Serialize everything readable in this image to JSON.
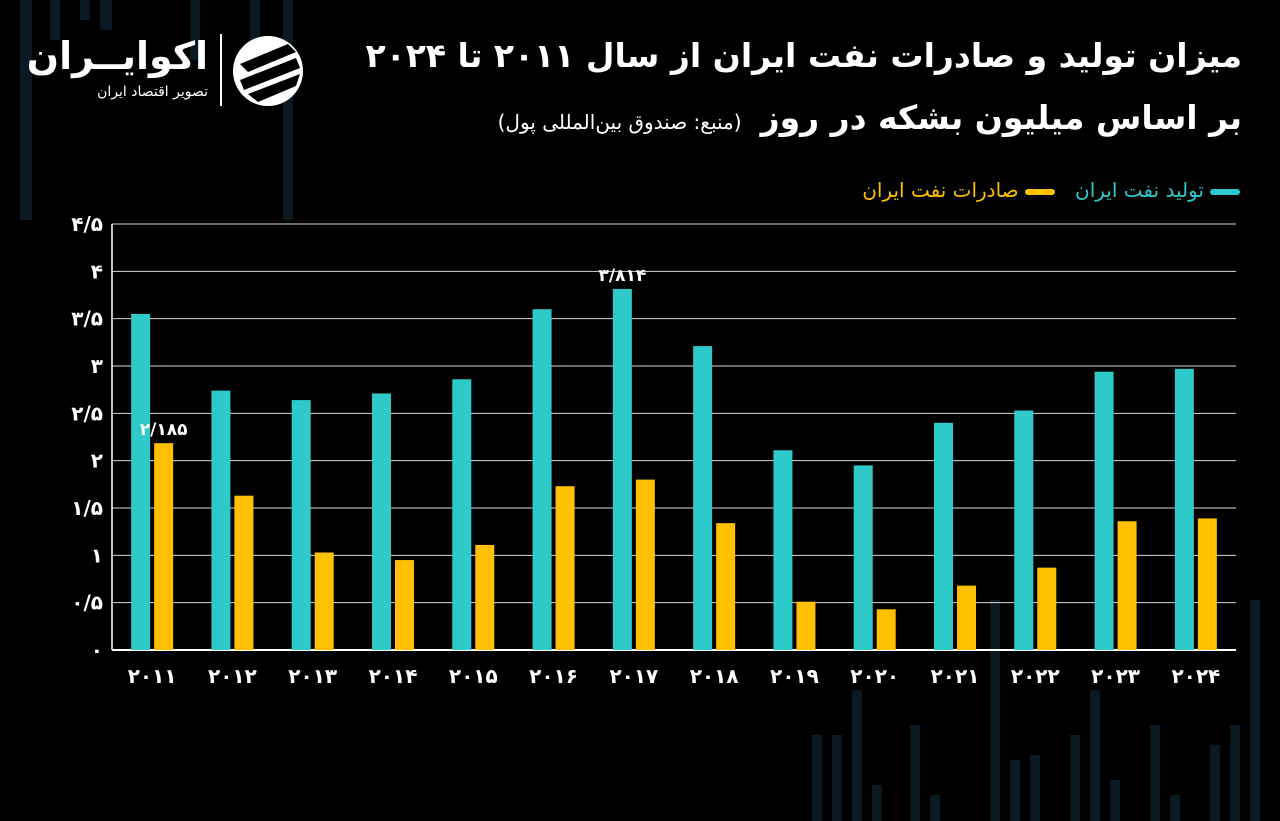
{
  "header": {
    "title": "میزان تولید و صادرات نفت ایران از سال ۲۰۱۱ تا ۲۰۲۴",
    "subtitle": "بر اساس میلیون بشکه در روز",
    "source": "(منبع: صندوق بین‌المللی پول)"
  },
  "logo": {
    "name": "اکوایــران",
    "tagline": "تصویر اقتصاد ایران",
    "icon": "ecoiran-logo-icon"
  },
  "colors": {
    "production": "#2ec9c9",
    "exports": "#ffc000",
    "background": "#000000",
    "grid": "#ffffff"
  },
  "chart_data": {
    "type": "bar",
    "categories": [
      "2011",
      "2012",
      "2013",
      "2014",
      "2015",
      "2016",
      "2017",
      "2018",
      "2019",
      "2020",
      "2021",
      "2022",
      "2023",
      "2024"
    ],
    "category_labels": [
      "۲۰۱۱",
      "۲۰۱۲",
      "۲۰۱۳",
      "۲۰۱۴",
      "۲۰۱۵",
      "۲۰۱۶",
      "۲۰۱۷",
      "۲۰۱۸",
      "۲۰۱۹",
      "۲۰۲۰",
      "۲۰۲۱",
      "۲۰۲۲",
      "۲۰۲۳",
      "۲۰۲۴"
    ],
    "series": [
      {
        "name": "تولید نفت ایران",
        "color": "#2ec9c9",
        "values": [
          3.55,
          2.74,
          2.64,
          2.71,
          2.86,
          3.6,
          3.814,
          3.21,
          2.11,
          1.95,
          2.4,
          2.53,
          2.94,
          2.97
        ]
      },
      {
        "name": "صادرات نفت ایران",
        "color": "#ffc000",
        "values": [
          2.185,
          1.63,
          1.03,
          0.95,
          1.11,
          1.73,
          1.8,
          1.34,
          0.51,
          0.43,
          0.68,
          0.87,
          1.36,
          1.39
        ]
      }
    ],
    "data_labels": [
      {
        "series": 0,
        "index": 6,
        "text": "۳/۸۱۴"
      },
      {
        "series": 1,
        "index": 0,
        "text": "۲/۱۸۵"
      }
    ],
    "ylim": [
      0,
      4.5
    ],
    "y_ticks": [
      0,
      0.5,
      1,
      1.5,
      2,
      2.5,
      3,
      3.5,
      4,
      4.5
    ],
    "y_tick_labels": [
      "۰",
      "۰/۵",
      "۱",
      "۱/۵",
      "۲",
      "۲/۵",
      "۳",
      "۳/۵",
      "۴",
      "۴/۵"
    ],
    "grid": true,
    "legend": "top-right"
  }
}
